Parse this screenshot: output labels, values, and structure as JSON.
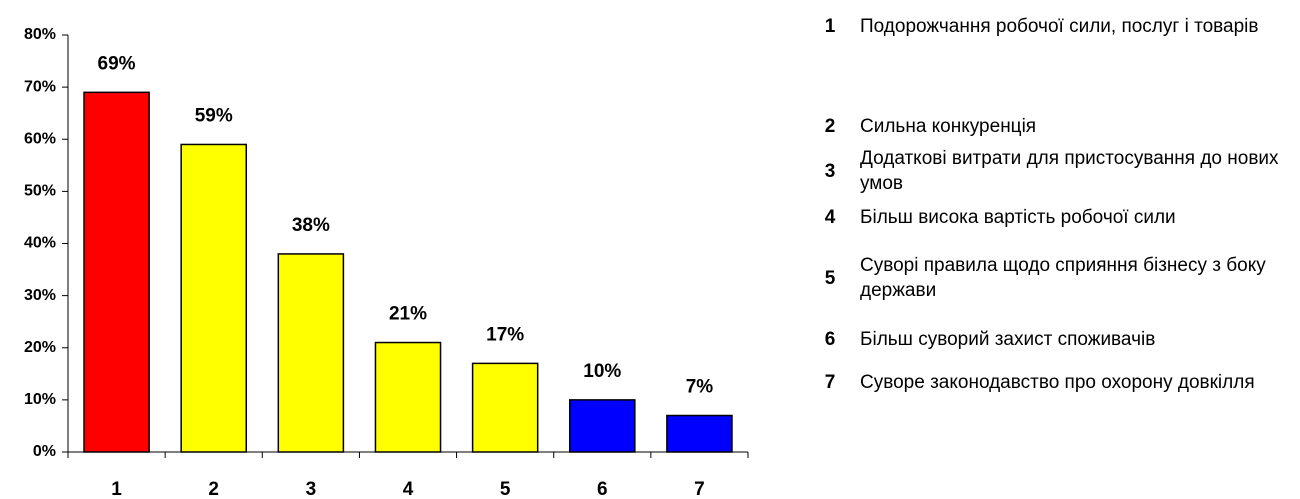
{
  "chart_data": {
    "type": "bar",
    "categories": [
      "1",
      "2",
      "3",
      "4",
      "5",
      "6",
      "7"
    ],
    "values": [
      69,
      59,
      38,
      21,
      17,
      10,
      7
    ],
    "value_labels": [
      "69%",
      "59%",
      "38%",
      "21%",
      "17%",
      "10%",
      "7%"
    ],
    "colors": [
      "#ff0000",
      "#ffff00",
      "#ffff00",
      "#ffff00",
      "#ffff00",
      "#0000ff",
      "#0000ff"
    ],
    "ylim": [
      0,
      80
    ],
    "yticks": [
      {
        "value": 0,
        "label": "0%"
      },
      {
        "value": 10,
        "label": "10%"
      },
      {
        "value": 20,
        "label": "20%"
      },
      {
        "value": 30,
        "label": "30%"
      },
      {
        "value": 40,
        "label": "40%"
      },
      {
        "value": 50,
        "label": "50%"
      },
      {
        "value": 60,
        "label": "60%"
      },
      {
        "value": 70,
        "label": "70%"
      },
      {
        "value": 80,
        "label": "80%"
      }
    ],
    "descriptions": [
      "Подорожчання робочої сили, послуг і товарів",
      "Сильна конкуренція",
      "Додаткові витрати для пристосування до нових умов",
      "Більш висока вартість робочої сили",
      "Суворі правила щодо сприяння бізнесу з боку держави",
      "Більш суворий захист споживачів",
      "Суворе законодавство про охорону довкілля"
    ]
  }
}
